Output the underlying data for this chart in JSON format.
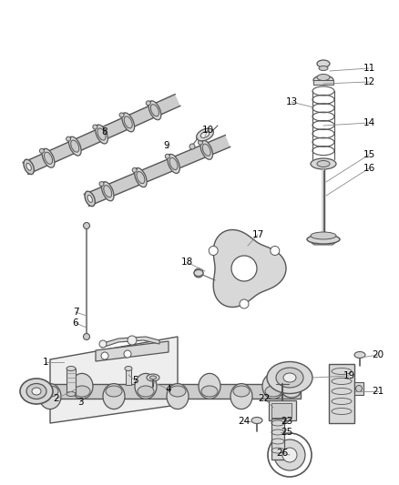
{
  "background_color": "#ffffff",
  "fig_width": 4.38,
  "fig_height": 5.33,
  "dpi": 100,
  "gray_dark": "#555555",
  "gray_mid": "#888888",
  "gray_light": "#cccccc",
  "gray_fill": "#d8d8d8",
  "gray_very_light": "#eeeeee"
}
